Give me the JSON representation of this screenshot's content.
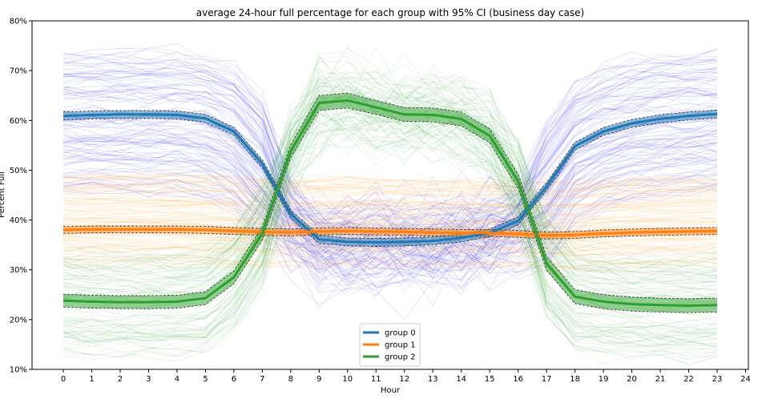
{
  "chart_data": {
    "type": "line",
    "title": "average 24-hour full percentage for each group with 95% CI (business day case)",
    "xlabel": "Hour",
    "ylabel": "Percent Full",
    "xlim": [
      -1.1,
      24.1
    ],
    "ylim": [
      10,
      80
    ],
    "x_ticks": [
      0,
      1,
      2,
      3,
      4,
      5,
      6,
      7,
      8,
      9,
      10,
      11,
      12,
      13,
      14,
      15,
      16,
      17,
      18,
      19,
      20,
      21,
      22,
      23,
      24
    ],
    "y_ticks": [
      10,
      20,
      30,
      40,
      50,
      60,
      70,
      80
    ],
    "y_tick_labels": [
      "10%",
      "20%",
      "30%",
      "40%",
      "50%",
      "60%",
      "70%",
      "80%"
    ],
    "x": [
      0,
      1,
      2,
      3,
      4,
      5,
      6,
      7,
      8,
      9,
      10,
      11,
      12,
      13,
      14,
      15,
      16,
      17,
      18,
      19,
      20,
      21,
      22,
      23
    ],
    "legend_position": "bottom-center",
    "grid": false,
    "series": [
      {
        "name": "group 0",
        "color": "#1f77b4",
        "thin_color": "#3b3bff",
        "values": [
          60.9,
          61.1,
          61.2,
          61.2,
          61.1,
          60.4,
          57.8,
          51.3,
          41.2,
          36.1,
          35.6,
          35.5,
          35.6,
          35.8,
          36.4,
          37.4,
          39.8,
          46.7,
          54.8,
          57.8,
          59.4,
          60.3,
          60.9,
          61.3
        ],
        "ci_lower": [
          60.1,
          60.3,
          60.4,
          60.4,
          60.3,
          59.6,
          57.0,
          50.5,
          40.4,
          35.3,
          34.8,
          34.7,
          34.8,
          35.0,
          35.6,
          36.6,
          39.0,
          45.9,
          54.0,
          57.0,
          58.6,
          59.5,
          60.1,
          60.5
        ],
        "ci_upper": [
          61.7,
          61.9,
          62.0,
          62.0,
          61.9,
          61.2,
          58.6,
          52.1,
          42.0,
          36.9,
          36.4,
          36.3,
          36.4,
          36.6,
          37.2,
          38.2,
          40.6,
          47.5,
          55.6,
          58.6,
          60.2,
          61.1,
          61.7,
          62.1
        ]
      },
      {
        "name": "group 1",
        "color": "#ff7f0e",
        "thin_color": "#ffb347",
        "values": [
          38.0,
          38.1,
          38.1,
          38.1,
          38.1,
          38.0,
          37.8,
          37.6,
          37.5,
          37.7,
          37.8,
          37.7,
          37.6,
          37.5,
          37.4,
          37.4,
          37.2,
          36.9,
          37.0,
          37.3,
          37.5,
          37.6,
          37.7,
          37.8
        ],
        "ci_lower": [
          37.3,
          37.4,
          37.4,
          37.4,
          37.4,
          37.3,
          37.1,
          36.9,
          36.8,
          37.0,
          37.1,
          37.0,
          36.9,
          36.8,
          36.7,
          36.7,
          36.5,
          36.2,
          36.3,
          36.6,
          36.8,
          36.9,
          37.0,
          37.1
        ],
        "ci_upper": [
          38.7,
          38.8,
          38.8,
          38.8,
          38.8,
          38.7,
          38.5,
          38.3,
          38.2,
          38.4,
          38.5,
          38.4,
          38.3,
          38.2,
          38.1,
          38.1,
          37.9,
          37.6,
          37.7,
          38.0,
          38.2,
          38.3,
          38.4,
          38.5
        ]
      },
      {
        "name": "group 2",
        "color": "#2ca02c",
        "thin_color": "#4caf50",
        "values": [
          23.8,
          23.6,
          23.5,
          23.5,
          23.6,
          24.3,
          28.5,
          37.3,
          53.8,
          63.5,
          64.0,
          62.6,
          61.2,
          61.1,
          60.3,
          56.9,
          47.8,
          31.3,
          24.6,
          23.6,
          23.1,
          22.9,
          22.8,
          22.9
        ],
        "ci_lower": [
          22.5,
          22.3,
          22.2,
          22.2,
          22.3,
          23.0,
          27.2,
          36.0,
          52.5,
          62.0,
          62.5,
          61.2,
          59.8,
          59.7,
          58.9,
          55.5,
          46.4,
          29.9,
          23.2,
          22.2,
          21.7,
          21.5,
          21.4,
          21.5
        ],
        "ci_upper": [
          25.1,
          24.9,
          24.8,
          24.8,
          24.9,
          25.6,
          29.8,
          38.6,
          55.1,
          65.0,
          65.5,
          64.0,
          62.6,
          62.5,
          61.7,
          58.3,
          49.2,
          32.7,
          26.0,
          25.0,
          24.5,
          24.3,
          24.2,
          24.3
        ]
      }
    ]
  }
}
